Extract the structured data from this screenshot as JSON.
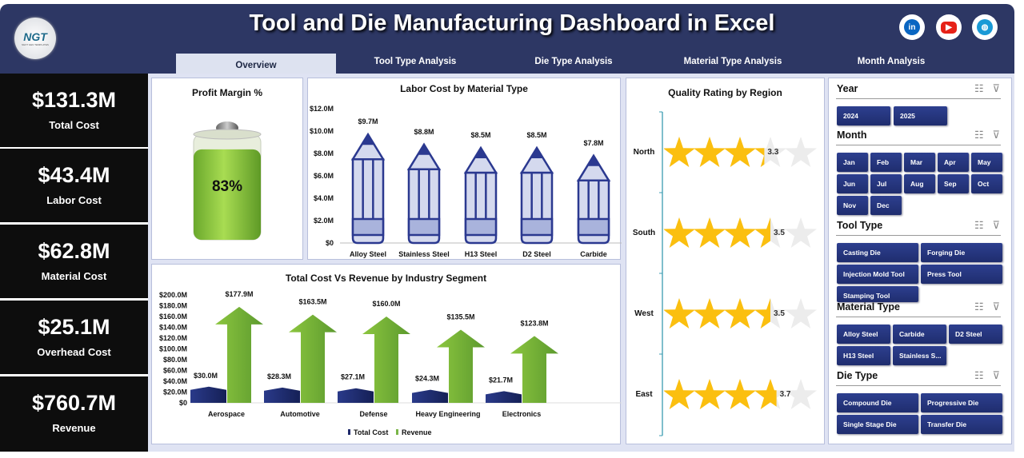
{
  "header": {
    "title": "Tool and Die Manufacturing Dashboard in Excel",
    "logo_text": "NGT",
    "logo_sub": "NEXT GEN TEMPLATES",
    "social": [
      "linkedin-icon",
      "youtube-icon",
      "globe-icon"
    ]
  },
  "tabs": [
    {
      "label": "Overview",
      "active": true
    },
    {
      "label": "Tool Type Analysis"
    },
    {
      "label": "Die Type Analysis"
    },
    {
      "label": "Material Type Analysis"
    },
    {
      "label": "Month Analysis"
    }
  ],
  "kpis": [
    {
      "value": "$131.3M",
      "label": "Total Cost"
    },
    {
      "value": "$43.4M",
      "label": "Labor Cost"
    },
    {
      "value": "$62.8M",
      "label": "Material Cost"
    },
    {
      "value": "$25.1M",
      "label": "Overhead Cost"
    },
    {
      "value": "$760.7M",
      "label": "Revenue"
    }
  ],
  "profit": {
    "title": "Profit Margin %",
    "value": 83,
    "label": "83%"
  },
  "colors": {
    "navy": "#2d3764",
    "pencil": "#2b3990",
    "pencil_fill": "#d4d9ee",
    "cost": "#1f2a6b",
    "revenue": "#7ab648",
    "star": "#fbbf0f",
    "star_empty": "#ececec"
  },
  "chart_data": [
    {
      "type": "bar",
      "title": "Labor Cost by Material Type",
      "categories": [
        "Alloy Steel",
        "Stainless Steel",
        "H13 Steel",
        "D2 Steel",
        "Carbide"
      ],
      "values": [
        9.7,
        8.8,
        8.5,
        8.5,
        7.8
      ],
      "data_labels": [
        "$9.7M",
        "$8.8M",
        "$8.5M",
        "$8.5M",
        "$7.8M"
      ],
      "ylim": [
        0,
        12
      ],
      "yticks": [
        "$0",
        "$2.0M",
        "$4.0M",
        "$6.0M",
        "$8.0M",
        "$10.0M",
        "$12.0M"
      ]
    },
    {
      "type": "bar",
      "title": "Total Cost Vs Revenue by Industry Segment",
      "categories": [
        "Aerospace",
        "Automotive",
        "Defense",
        "Heavy Engineering",
        "Electronics"
      ],
      "series": [
        {
          "name": "Total Cost",
          "values": [
            30.0,
            28.3,
            27.1,
            24.3,
            21.7
          ],
          "labels": [
            "$30.0M",
            "$28.3M",
            "$27.1M",
            "$24.3M",
            "$21.7M"
          ]
        },
        {
          "name": "Revenue",
          "values": [
            177.9,
            163.5,
            160.0,
            135.5,
            123.8
          ],
          "labels": [
            "$177.9M",
            "$163.5M",
            "$160.0M",
            "$135.5M",
            "$123.8M"
          ]
        }
      ],
      "ylim": [
        0,
        200
      ],
      "yticks": [
        "$0",
        "$20.0M",
        "$40.0M",
        "$60.0M",
        "$80.0M",
        "$100.0M",
        "$120.0M",
        "$140.0M",
        "$160.0M",
        "$180.0M",
        "$200.0M"
      ],
      "legend": "bottom"
    },
    {
      "type": "bar",
      "title": "Quality Rating by Region",
      "categories": [
        "North",
        "South",
        "West",
        "East"
      ],
      "values": [
        3.3,
        3.5,
        3.5,
        3.7
      ],
      "data_labels": [
        "3.3",
        "3.5",
        "3.5",
        "3.7"
      ],
      "max": 5
    }
  ],
  "slicers": [
    {
      "title": "Year",
      "items": [
        "2024",
        "2025"
      ]
    },
    {
      "title": "Month",
      "items": [
        "Jan",
        "Feb",
        "Mar",
        "Apr",
        "May",
        "Jun",
        "Jul",
        "Aug",
        "Sep",
        "Oct",
        "Nov",
        "Dec"
      ]
    },
    {
      "title": "Tool Type",
      "items": [
        "Casting Die",
        "Forging Die",
        "Injection Mold Tool",
        "Press Tool",
        "Stamping Tool"
      ]
    },
    {
      "title": "Material Type",
      "items": [
        "Alloy Steel",
        "Carbide",
        "D2 Steel",
        "H13 Steel",
        "Stainless S..."
      ]
    },
    {
      "title": "Die Type",
      "items": [
        "Compound Die",
        "Progressive Die",
        "Single Stage Die",
        "Transfer Die"
      ]
    }
  ]
}
